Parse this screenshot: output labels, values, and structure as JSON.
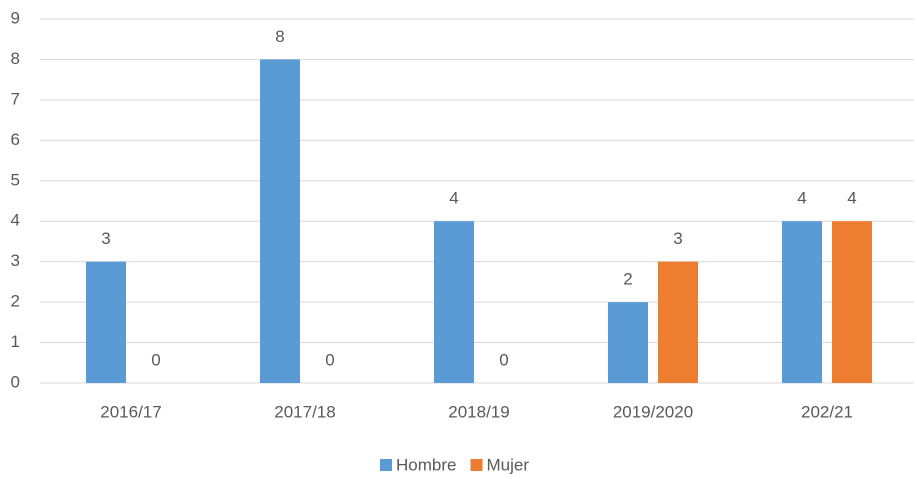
{
  "chart_data": {
    "type": "bar",
    "categories": [
      "2016/17",
      "2017/18",
      "2018/19",
      "2019/2020",
      "202/21"
    ],
    "series": [
      {
        "name": "Hombre",
        "color": "#5b9bd5",
        "values": [
          3,
          8,
          4,
          2,
          4
        ]
      },
      {
        "name": "Mujer",
        "color": "#ed7d31",
        "values": [
          0,
          0,
          0,
          3,
          4
        ]
      }
    ],
    "ylim": [
      0,
      9
    ],
    "yticks": [
      0,
      1,
      2,
      3,
      4,
      5,
      6,
      7,
      8,
      9
    ],
    "grid": true,
    "legend": "bottom"
  }
}
